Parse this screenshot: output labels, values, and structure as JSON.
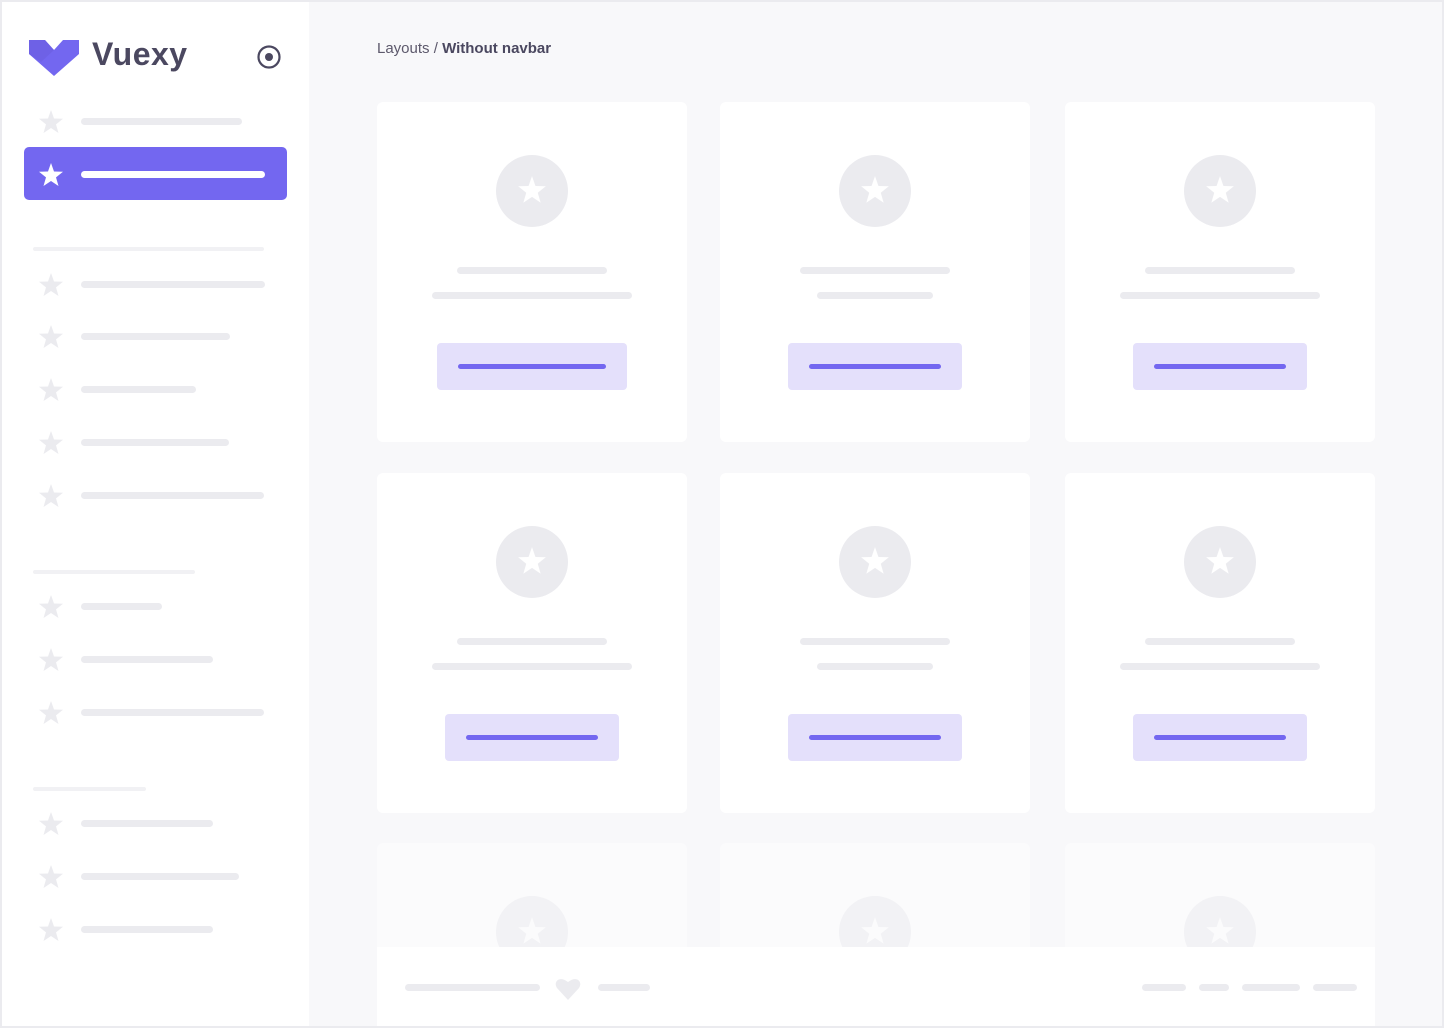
{
  "brand": {
    "name": "Vuexy",
    "logo_color": "#7367f0"
  },
  "breadcrumb": {
    "parent": "Layouts",
    "separator": "/",
    "current": "Without navbar"
  },
  "colors": {
    "accent": "#7367f0",
    "accent_light": "#e4e0fb",
    "placeholder": "#ebebef"
  },
  "icons": {
    "toggle": "radio-circle-icon",
    "menu": "star-icon",
    "footer": "heart-icon"
  }
}
